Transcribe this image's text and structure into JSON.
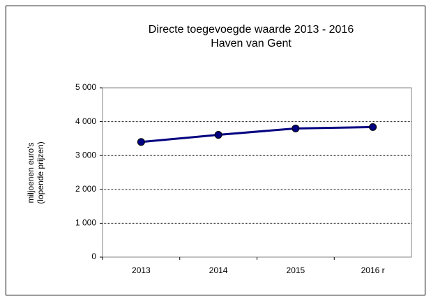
{
  "chart_data": {
    "type": "line",
    "title": "Directe toegevoegde waarde 2013 - 2016",
    "subtitle": "Haven van Gent",
    "ylabel": [
      "miljoenen euro's",
      "(lopende prijzen)"
    ],
    "categories": [
      "2013",
      "2014",
      "2015",
      "2016 r"
    ],
    "series": [
      {
        "name": "Directe toegevoegde waarde",
        "color": "#000080",
        "values": [
          3400,
          3610,
          3800,
          3840
        ]
      }
    ],
    "ylim": [
      0,
      5000
    ],
    "yticks": [
      0,
      {
        "value": 1000,
        "label": "1 000"
      },
      {
        "value": 2000,
        "label": "2 000"
      },
      {
        "value": 3000,
        "label": "3 000"
      },
      {
        "value": 4000,
        "label": "4 000"
      },
      {
        "value": 5000,
        "label": "5 000"
      }
    ],
    "grid": true,
    "legend": false
  }
}
